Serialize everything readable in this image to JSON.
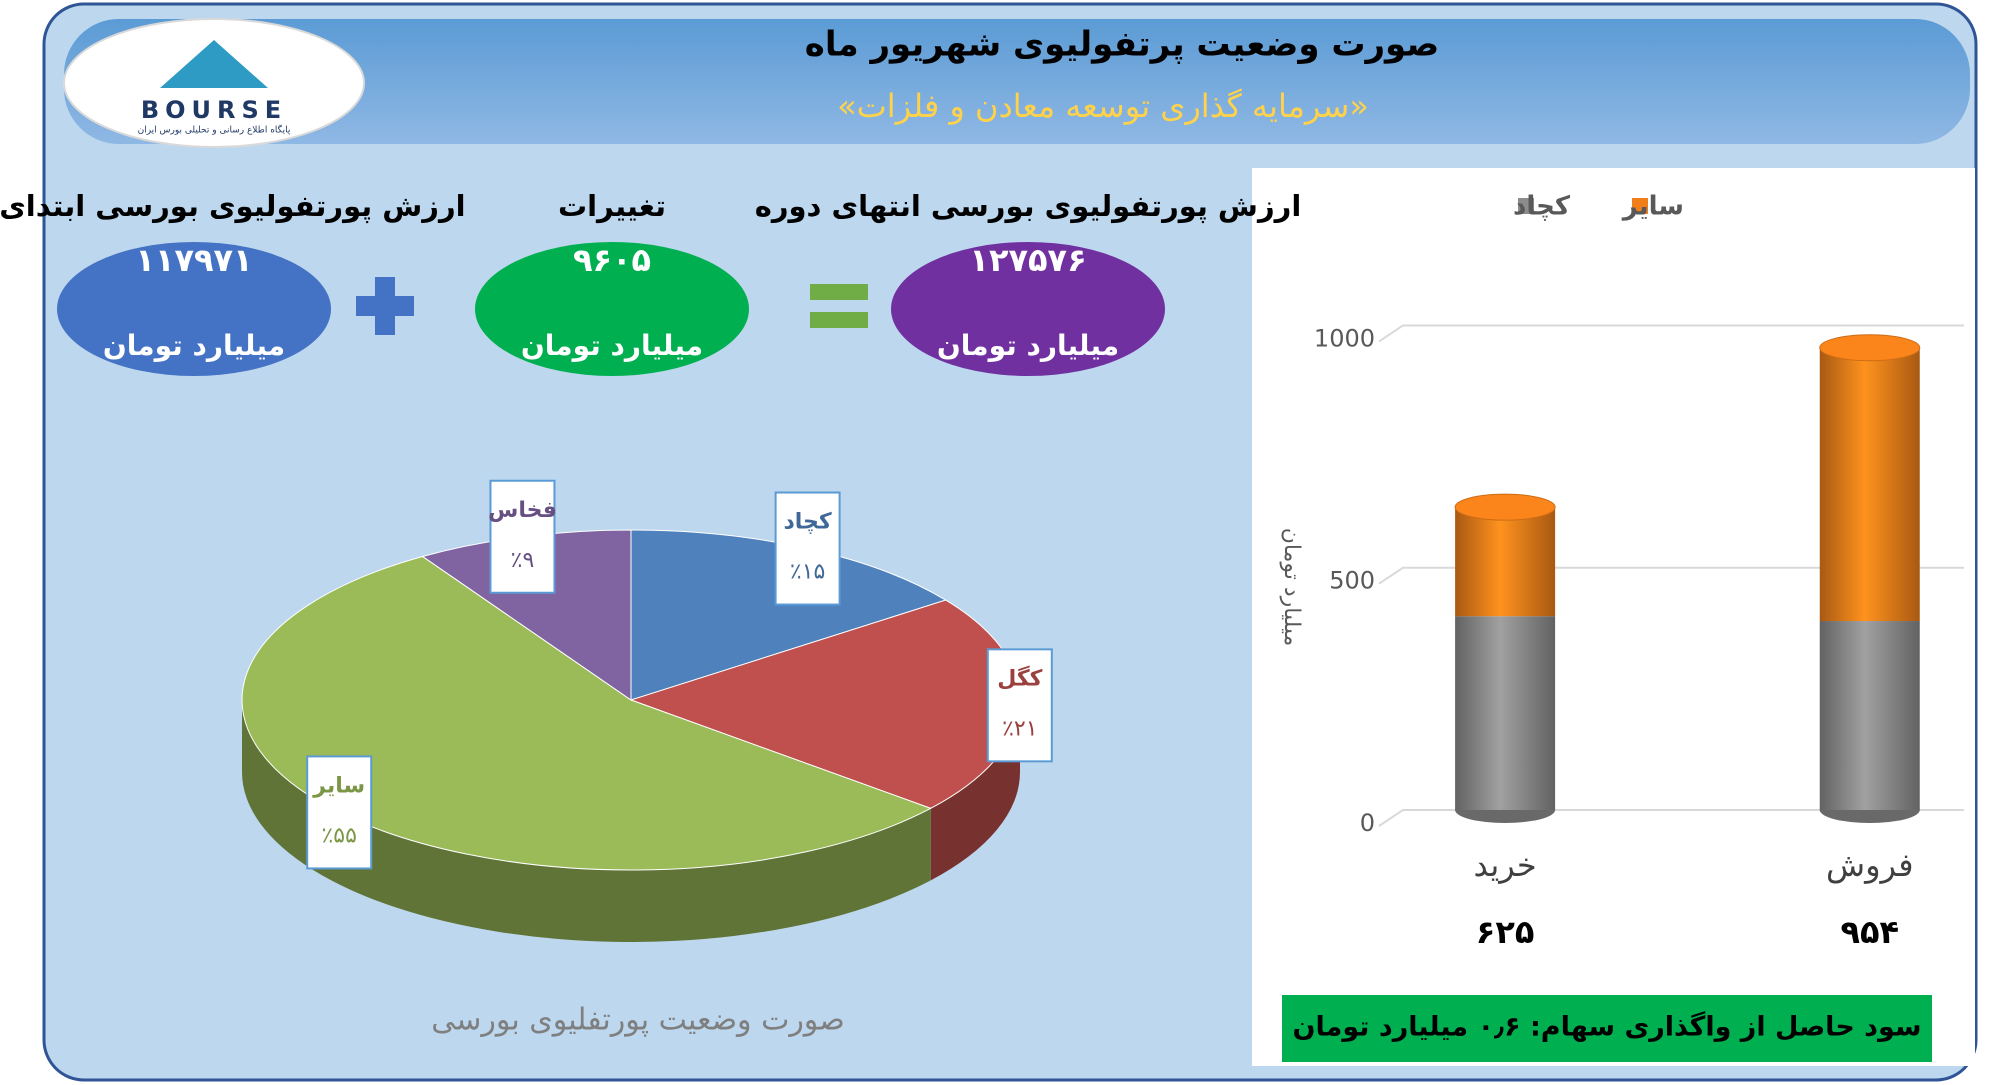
{
  "logo": {
    "name": "BOURSE",
    "tagline": "پایگاه اطلاع رسانی و تحلیلی بورس ایران"
  },
  "header": {
    "title": "صورت وضعیت پرتفولیوی شهریور ماه",
    "subtitle": "«سرمایه گذاری توسعه معادن و فلزات»"
  },
  "summary": {
    "unit": "میلیارد تومان",
    "items": [
      {
        "label": "ارزش پورتفولیوی بورسی انتهای دوره",
        "value": "۱۲۷۵۷۶",
        "color": "#7030a0"
      },
      {
        "label": "تغییرات",
        "value": "۹۶۰۵",
        "color": "#00b050"
      },
      {
        "label": "ارزش پورتفولیوی بورسی ابتدای دوره",
        "value": "۱۱۷۹۷۱",
        "color": "#4472c4"
      }
    ]
  },
  "chart_data": [
    {
      "type": "pie",
      "title": "صورت وضعیت پورتفلیوی بورسی",
      "categories": [
        "کچاد",
        "کگل",
        "سایر",
        "فخاس"
      ],
      "values": [
        15,
        21,
        55,
        9
      ],
      "value_labels": [
        "٪۱۵",
        "٪۲۱",
        "٪۵۵",
        "٪۹"
      ],
      "colors": [
        "#4f81bd",
        "#c0504d",
        "#9bbb59",
        "#8064a2"
      ]
    },
    {
      "type": "bar",
      "stacked": true,
      "categories": [
        "خرید",
        "فروش"
      ],
      "series": [
        {
          "name": "کچاد",
          "color": "#8c8c8c",
          "values": [
            400,
            390
          ]
        },
        {
          "name": "سایر",
          "color": "#f07f1a",
          "values": [
            225,
            564
          ]
        }
      ],
      "totals": [
        625,
        954
      ],
      "total_labels": [
        "۶۲۵",
        "۹۵۴"
      ],
      "ylim": [
        0,
        1100
      ],
      "yticks": [
        0,
        500,
        1000
      ],
      "ylabel": "میلیارد تومان",
      "grid": true,
      "legend": "top"
    }
  ],
  "note": "سود حاصل از واگذاری سهام: ۰٫۶ میلیارد تومان"
}
